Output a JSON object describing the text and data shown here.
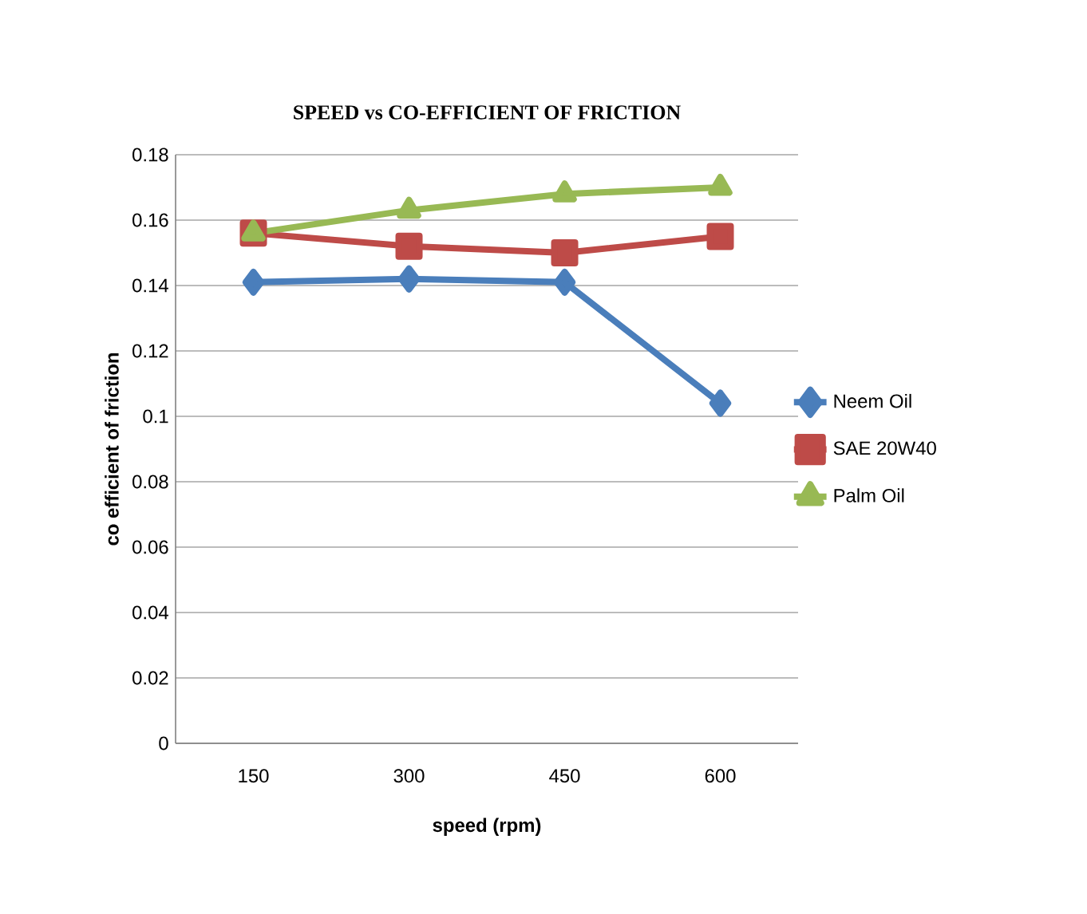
{
  "chart_data": {
    "type": "line",
    "title": "SPEED  vs CO-EFFICIENT OF FRICTION",
    "xlabel": "speed (rpm)",
    "ylabel": "co efficient of friction",
    "categories": [
      "150",
      "300",
      "450",
      "600"
    ],
    "series": [
      {
        "name": "Neem Oil",
        "color": "#4a7ebb",
        "marker": "diamond",
        "values": [
          0.141,
          0.142,
          0.141,
          0.104
        ]
      },
      {
        "name": "SAE 20W40",
        "color": "#be4b48",
        "marker": "square",
        "values": [
          0.156,
          0.152,
          0.15,
          0.155
        ]
      },
      {
        "name": "Palm Oil",
        "color": "#98b954",
        "marker": "triangle",
        "values": [
          0.156,
          0.163,
          0.168,
          0.17
        ]
      }
    ],
    "ylim": [
      0,
      0.18
    ],
    "yticks": [
      0,
      0.02,
      0.04,
      0.06,
      0.08,
      0.1,
      0.12,
      0.14,
      0.16,
      0.18
    ],
    "grid": "y",
    "legend": "right"
  }
}
